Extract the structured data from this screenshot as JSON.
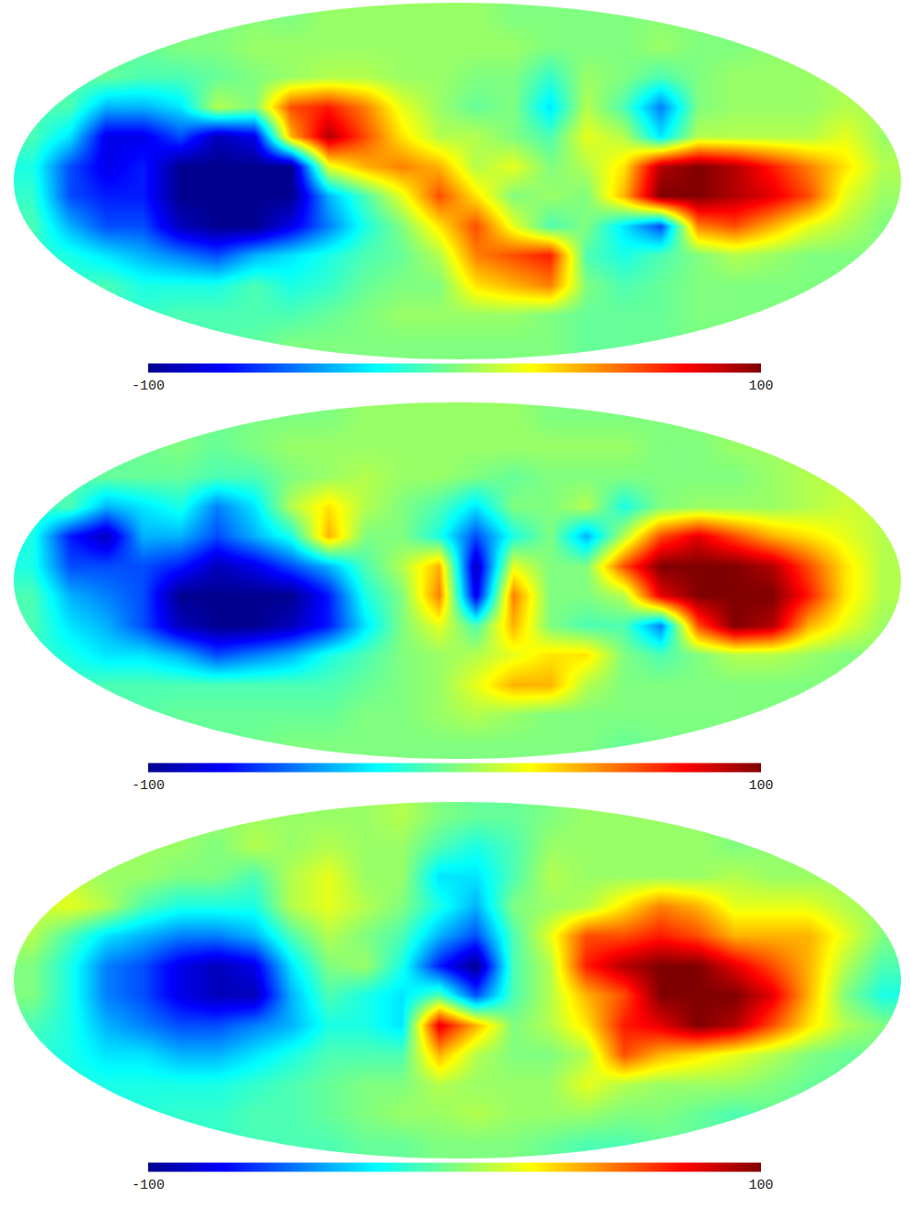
{
  "chart_data": [
    {
      "type": "heatmap",
      "tick_labels": false,
      "color_range": [
        -100,
        100
      ],
      "color_ticks": [
        {
          "value": -100,
          "label": "-100"
        },
        100
      ],
      "cells": [
        [
          null,
          null,
          null,
          null,
          null,
          null,
          null,
          0,
          5,
          5,
          5,
          5,
          5,
          0,
          0,
          0,
          0,
          null,
          null,
          null,
          null,
          null,
          null,
          null
        ],
        [
          null,
          null,
          null,
          null,
          0,
          0,
          5,
          5,
          5,
          5,
          5,
          5,
          5,
          5,
          0,
          0,
          0,
          5,
          0,
          0,
          null,
          null,
          null,
          null
        ],
        [
          null,
          null,
          -5,
          -10,
          -10,
          -5,
          0,
          5,
          10,
          10,
          5,
          5,
          0,
          0,
          -15,
          5,
          0,
          -10,
          0,
          5,
          5,
          5,
          null,
          null
        ],
        [
          null,
          -10,
          -40,
          -40,
          -30,
          10,
          0,
          60,
          70,
          50,
          20,
          5,
          -5,
          0,
          -30,
          10,
          -10,
          -50,
          0,
          5,
          5,
          5,
          10,
          null
        ],
        [
          -10,
          -30,
          -80,
          -80,
          -60,
          -90,
          -80,
          40,
          90,
          60,
          30,
          10,
          10,
          0,
          -10,
          20,
          10,
          -30,
          10,
          10,
          10,
          10,
          20,
          5
        ],
        [
          -20,
          -60,
          -80,
          -70,
          -100,
          -100,
          -100,
          -100,
          20,
          40,
          50,
          40,
          10,
          20,
          0,
          10,
          30,
          90,
          100,
          90,
          70,
          50,
          30,
          10
        ],
        [
          -15,
          -60,
          -70,
          -70,
          -100,
          -100,
          -100,
          -100,
          -40,
          -10,
          20,
          60,
          30,
          0,
          5,
          0,
          40,
          100,
          100,
          90,
          80,
          60,
          20,
          5
        ],
        [
          -10,
          -40,
          -60,
          -60,
          -90,
          -100,
          -100,
          -80,
          -50,
          -20,
          0,
          30,
          60,
          20,
          -10,
          0,
          -30,
          -60,
          50,
          60,
          40,
          20,
          10,
          0
        ],
        [
          null,
          -20,
          -30,
          -40,
          -50,
          -60,
          -40,
          -30,
          -20,
          -10,
          -5,
          10,
          50,
          60,
          70,
          -10,
          -20,
          -10,
          0,
          10,
          5,
          0,
          0,
          null
        ],
        [
          null,
          null,
          -10,
          -20,
          -20,
          -20,
          -10,
          -20,
          -15,
          -5,
          0,
          0,
          30,
          40,
          50,
          0,
          -10,
          -5,
          0,
          0,
          0,
          0,
          null,
          null
        ],
        [
          null,
          null,
          null,
          null,
          -10,
          -10,
          -10,
          -10,
          -5,
          0,
          5,
          5,
          5,
          5,
          0,
          -5,
          -5,
          -5,
          0,
          0,
          null,
          null,
          null,
          null
        ],
        [
          null,
          null,
          null,
          null,
          null,
          null,
          null,
          0,
          0,
          0,
          0,
          0,
          0,
          0,
          0,
          -5,
          -5,
          null,
          null,
          null,
          null,
          null,
          null,
          null
        ]
      ]
    },
    {
      "type": "heatmap",
      "tick_labels": false,
      "color_range": [
        -100,
        100
      ],
      "color_ticks": [
        {
          "value": -100,
          "label": "-100"
        },
        100
      ],
      "cells": [
        [
          null,
          null,
          null,
          null,
          null,
          null,
          null,
          0,
          0,
          5,
          5,
          5,
          5,
          5,
          0,
          0,
          0,
          null,
          null,
          null,
          null,
          null,
          null,
          null
        ],
        [
          null,
          null,
          null,
          null,
          0,
          -5,
          0,
          5,
          5,
          5,
          5,
          5,
          5,
          5,
          5,
          5,
          5,
          0,
          0,
          5,
          null,
          null,
          null,
          null
        ],
        [
          null,
          null,
          -5,
          -5,
          -5,
          -10,
          -10,
          0,
          5,
          10,
          5,
          5,
          0,
          -5,
          0,
          0,
          0,
          0,
          0,
          0,
          5,
          10,
          null,
          null
        ],
        [
          null,
          -10,
          -40,
          -30,
          -20,
          -50,
          -30,
          10,
          30,
          10,
          0,
          -10,
          -30,
          0,
          0,
          10,
          -20,
          0,
          5,
          5,
          5,
          10,
          15,
          null
        ],
        [
          -20,
          -70,
          -90,
          -40,
          -40,
          -60,
          -40,
          -20,
          40,
          0,
          0,
          -20,
          -60,
          -20,
          0,
          -40,
          10,
          60,
          80,
          60,
          40,
          30,
          20,
          10
        ],
        [
          -20,
          -60,
          -60,
          -60,
          -70,
          -90,
          -80,
          -60,
          -40,
          -10,
          10,
          40,
          -90,
          20,
          0,
          0,
          60,
          100,
          100,
          100,
          90,
          60,
          30,
          10
        ],
        [
          -10,
          -40,
          -50,
          -60,
          -100,
          -100,
          -100,
          -100,
          -70,
          -20,
          0,
          50,
          -80,
          50,
          0,
          0,
          10,
          80,
          100,
          100,
          100,
          70,
          30,
          10
        ],
        [
          -10,
          -30,
          -40,
          -60,
          -90,
          -100,
          -100,
          -90,
          -70,
          -30,
          0,
          20,
          -10,
          40,
          0,
          -10,
          -10,
          -50,
          60,
          100,
          90,
          40,
          20,
          5
        ],
        [
          null,
          -20,
          -30,
          -30,
          -40,
          -60,
          -50,
          -40,
          -20,
          -10,
          0,
          5,
          10,
          20,
          30,
          30,
          0,
          -10,
          0,
          10,
          10,
          5,
          0,
          null
        ],
        [
          null,
          null,
          -10,
          -10,
          -10,
          -10,
          -10,
          -10,
          -10,
          -5,
          0,
          5,
          20,
          40,
          40,
          10,
          0,
          0,
          0,
          0,
          0,
          0,
          null,
          null
        ],
        [
          null,
          null,
          null,
          null,
          -5,
          -5,
          -5,
          -5,
          -5,
          0,
          0,
          5,
          10,
          5,
          0,
          0,
          0,
          0,
          0,
          0,
          null,
          null,
          null,
          null
        ],
        [
          null,
          null,
          null,
          null,
          null,
          null,
          null,
          0,
          0,
          0,
          0,
          0,
          0,
          0,
          0,
          0,
          -5,
          null,
          null,
          null,
          null,
          null,
          null,
          null
        ]
      ]
    },
    {
      "type": "heatmap",
      "tick_labels": false,
      "color_range": [
        -100,
        100
      ],
      "color_ticks": [
        {
          "value": -100,
          "label": "-100"
        },
        100
      ],
      "cells": [
        [
          null,
          null,
          null,
          null,
          null,
          null,
          null,
          5,
          5,
          5,
          10,
          0,
          -5,
          -5,
          0,
          5,
          5,
          null,
          null,
          null,
          null,
          null,
          null,
          null
        ],
        [
          null,
          null,
          null,
          null,
          5,
          0,
          10,
          5,
          10,
          5,
          5,
          -10,
          -20,
          -10,
          5,
          5,
          5,
          5,
          5,
          0,
          null,
          null,
          null,
          null
        ],
        [
          null,
          null,
          5,
          5,
          0,
          0,
          -10,
          10,
          20,
          5,
          5,
          -30,
          -30,
          -10,
          10,
          5,
          5,
          5,
          5,
          10,
          5,
          5,
          null,
          null
        ],
        [
          null,
          20,
          10,
          -10,
          -20,
          -20,
          -20,
          10,
          20,
          10,
          0,
          -20,
          -40,
          0,
          5,
          10,
          30,
          50,
          40,
          20,
          20,
          20,
          10,
          null
        ],
        [
          10,
          -10,
          -30,
          -40,
          -50,
          -50,
          -40,
          -10,
          10,
          0,
          -10,
          -40,
          -60,
          -10,
          20,
          60,
          60,
          70,
          60,
          40,
          40,
          40,
          20,
          0
        ],
        [
          0,
          -20,
          -50,
          -60,
          -80,
          -90,
          -80,
          -30,
          0,
          5,
          -20,
          -70,
          -100,
          -10,
          10,
          70,
          90,
          100,
          100,
          80,
          60,
          40,
          10,
          -10
        ],
        [
          0,
          -20,
          -50,
          -60,
          -80,
          -90,
          -90,
          -40,
          -10,
          -20,
          -30,
          -10,
          -60,
          -10,
          10,
          40,
          60,
          100,
          100,
          100,
          80,
          40,
          0,
          -20
        ],
        [
          -10,
          -20,
          -40,
          -50,
          -60,
          -60,
          -50,
          -40,
          -20,
          -20,
          -30,
          80,
          40,
          0,
          10,
          30,
          70,
          80,
          100,
          90,
          60,
          30,
          10,
          0
        ],
        [
          null,
          -20,
          -30,
          -30,
          -40,
          -40,
          -30,
          -20,
          -10,
          -10,
          -10,
          40,
          10,
          0,
          0,
          10,
          60,
          40,
          30,
          20,
          10,
          0,
          -5,
          null
        ],
        [
          null,
          null,
          -20,
          -20,
          -20,
          -20,
          -15,
          -10,
          -5,
          0,
          0,
          10,
          5,
          5,
          5,
          20,
          10,
          5,
          5,
          5,
          0,
          -5,
          null,
          null
        ],
        [
          null,
          null,
          null,
          null,
          -15,
          -15,
          -10,
          -10,
          -5,
          0,
          5,
          5,
          10,
          5,
          5,
          5,
          0,
          0,
          -5,
          -10,
          null,
          null,
          null,
          null
        ],
        [
          null,
          null,
          null,
          null,
          null,
          null,
          null,
          -10,
          -10,
          -5,
          -5,
          0,
          0,
          0,
          -5,
          -10,
          -10,
          null,
          null,
          null,
          null,
          null,
          null,
          null
        ]
      ]
    }
  ]
}
